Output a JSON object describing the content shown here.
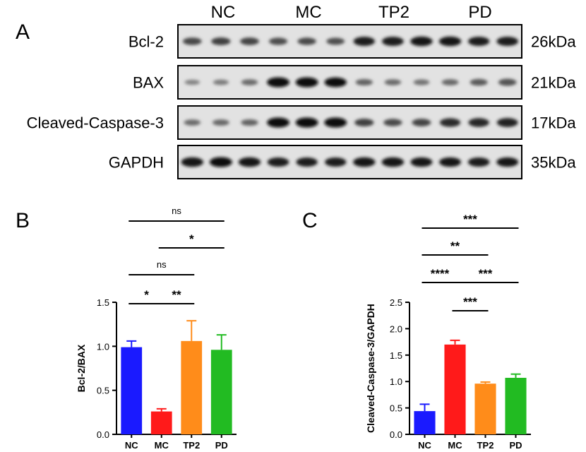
{
  "panels": {
    "a": "A",
    "b": "B",
    "c": "C"
  },
  "blot": {
    "groups": [
      "NC",
      "MC",
      "TP2",
      "PD"
    ],
    "rows": [
      {
        "protein": "Bcl-2",
        "size": "26kDa",
        "intensity": [
          0.62,
          0.66,
          0.64,
          0.58,
          0.6,
          0.56,
          0.88,
          0.9,
          0.95,
          0.95,
          0.88,
          0.9
        ]
      },
      {
        "protein": "BAX",
        "size": "21kDa",
        "intensity": [
          0.25,
          0.3,
          0.4,
          1.0,
          1.0,
          0.96,
          0.45,
          0.4,
          0.35,
          0.42,
          0.5,
          0.55
        ]
      },
      {
        "protein": "Cleaved-Caspase-3",
        "size": "17kDa",
        "intensity": [
          0.4,
          0.42,
          0.45,
          1.0,
          1.0,
          1.0,
          0.66,
          0.6,
          0.64,
          0.8,
          0.82,
          0.85
        ]
      },
      {
        "protein": "GAPDH",
        "size": "35kDa",
        "intensity": [
          0.95,
          1.0,
          0.95,
          0.9,
          0.88,
          0.88,
          0.95,
          0.95,
          0.92,
          0.92,
          0.9,
          0.92
        ]
      }
    ]
  },
  "chart_data": [
    {
      "type": "bar",
      "panel": "B",
      "categories": [
        "NC",
        "MC",
        "TP2",
        "PD"
      ],
      "values": [
        0.99,
        0.26,
        1.06,
        0.96
      ],
      "errors": [
        0.07,
        0.03,
        0.23,
        0.17
      ],
      "colors": [
        "#1a1aff",
        "#ff1a1a",
        "#ff8c1a",
        "#22bb22"
      ],
      "ylabel": "Bcl-2/BAX",
      "ylim": [
        0,
        1.5
      ],
      "yticks": [
        "0.0",
        "0.5",
        "1.0",
        "1.5"
      ],
      "comparisons": [
        {
          "from": 0,
          "to": 3,
          "label": "ns"
        },
        {
          "from": 1,
          "to": 3,
          "label": "*"
        },
        {
          "from": 0,
          "to": 2,
          "label": "ns"
        },
        {
          "from": 0,
          "to": 1,
          "label": "*"
        },
        {
          "from": 1,
          "to": 2,
          "label": "**"
        }
      ]
    },
    {
      "type": "bar",
      "panel": "C",
      "categories": [
        "NC",
        "MC",
        "TP2",
        "PD"
      ],
      "values": [
        0.44,
        1.7,
        0.96,
        1.07
      ],
      "errors": [
        0.13,
        0.08,
        0.03,
        0.07
      ],
      "colors": [
        "#1a1aff",
        "#ff1a1a",
        "#ff8c1a",
        "#22bb22"
      ],
      "ylabel": "Cleaved-Caspase-3/GAPDH",
      "ylim": [
        0,
        2.5
      ],
      "yticks": [
        "0.0",
        "0.5",
        "1.0",
        "1.5",
        "2.0",
        "2.5"
      ],
      "comparisons": [
        {
          "from": 0,
          "to": 3,
          "label": "***"
        },
        {
          "from": 0,
          "to": 2,
          "label": "**"
        },
        {
          "from": 0,
          "to": 1,
          "label": "****"
        },
        {
          "from": 1,
          "to": 3,
          "label": "***"
        },
        {
          "from": 1,
          "to": 2,
          "label": "***"
        }
      ]
    }
  ]
}
